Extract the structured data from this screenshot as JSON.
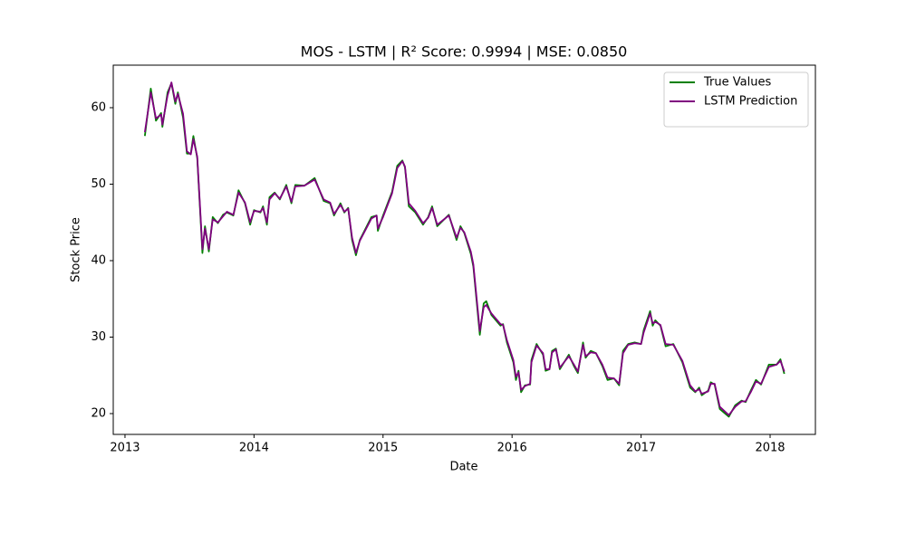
{
  "chart_data": {
    "type": "line",
    "title": "MOS - LSTM | R² Score: 0.9994 | MSE: 0.0850",
    "x_label": "Date",
    "y_label": "Stock Price",
    "x": [
      2013.154,
      2013.2,
      2013.24,
      2013.28,
      2013.29,
      2013.33,
      2013.36,
      2013.39,
      2013.41,
      2013.45,
      2013.48,
      2013.51,
      2013.53,
      2013.56,
      2013.6,
      2013.62,
      2013.65,
      2013.68,
      2013.72,
      2013.76,
      2013.79,
      2013.84,
      2013.88,
      2013.93,
      2013.97,
      2014.0,
      2014.05,
      2014.07,
      2014.1,
      2014.12,
      2014.16,
      2014.2,
      2014.25,
      2014.29,
      2014.32,
      2014.39,
      2014.47,
      2014.54,
      2014.59,
      2014.62,
      2014.67,
      2014.7,
      2014.73,
      2014.76,
      2014.79,
      2014.82,
      2014.91,
      2014.95,
      2014.96,
      2015.0,
      2015.07,
      2015.11,
      2015.15,
      2015.17,
      2015.2,
      2015.25,
      2015.31,
      2015.35,
      2015.38,
      2015.42,
      2015.51,
      2015.57,
      2015.6,
      2015.63,
      2015.68,
      2015.7,
      2015.75,
      2015.78,
      2015.8,
      2015.84,
      2015.91,
      2015.93,
      2015.96,
      2016.01,
      2016.03,
      2016.05,
      2016.07,
      2016.1,
      2016.14,
      2016.15,
      2016.19,
      2016.24,
      2016.26,
      2016.29,
      2016.31,
      2016.34,
      2016.37,
      2016.44,
      2016.48,
      2016.51,
      2016.55,
      2016.57,
      2016.61,
      2016.65,
      2016.7,
      2016.74,
      2016.79,
      2016.83,
      2016.86,
      2016.9,
      2016.95,
      2017.0,
      2017.02,
      2017.07,
      2017.09,
      2017.11,
      2017.15,
      2017.19,
      2017.25,
      2017.32,
      2017.38,
      2017.42,
      2017.45,
      2017.47,
      2017.52,
      2017.54,
      2017.57,
      2017.61,
      2017.68,
      2017.73,
      2017.78,
      2017.81,
      2017.85,
      2017.89,
      2017.93,
      2017.99,
      2018.05,
      2018.08,
      2018.11
    ],
    "series": [
      {
        "name": "True Values",
        "color": "#008000",
        "values": [
          56.3,
          62.5,
          58.3,
          59.3,
          57.5,
          62.0,
          63.2,
          60.5,
          62.0,
          58.7,
          54.0,
          54.0,
          56.3,
          53.4,
          41.0,
          44.5,
          41.2,
          45.7,
          44.9,
          46.0,
          46.3,
          45.9,
          49.2,
          47.5,
          44.7,
          46.6,
          46.3,
          47.1,
          44.7,
          48.3,
          48.9,
          48.0,
          49.9,
          47.5,
          49.9,
          49.8,
          50.8,
          47.8,
          47.5,
          45.9,
          47.5,
          46.3,
          46.9,
          42.7,
          40.7,
          42.7,
          45.7,
          45.9,
          43.9,
          45.9,
          49.0,
          52.4,
          53.1,
          52.2,
          47.1,
          46.3,
          44.7,
          45.7,
          47.1,
          44.5,
          46.0,
          42.7,
          44.5,
          43.6,
          40.9,
          39.2,
          30.3,
          34.4,
          34.7,
          32.9,
          31.5,
          31.7,
          29.3,
          26.7,
          24.4,
          25.6,
          22.8,
          23.7,
          23.8,
          27.0,
          29.1,
          27.7,
          25.6,
          25.8,
          28.2,
          28.5,
          25.8,
          27.7,
          26.2,
          25.3,
          29.3,
          27.3,
          28.2,
          27.9,
          26.2,
          24.4,
          24.6,
          23.7,
          28.2,
          29.1,
          29.3,
          29.1,
          30.9,
          33.4,
          31.5,
          32.2,
          31.5,
          28.8,
          29.1,
          26.7,
          23.4,
          22.8,
          23.4,
          22.4,
          23.0,
          24.1,
          23.8,
          20.6,
          19.6,
          21.1,
          21.7,
          21.5,
          23.0,
          24.4,
          23.8,
          26.4,
          26.4,
          27.1,
          25.2
        ]
      },
      {
        "name": "LSTM Prediction",
        "color": "#800080",
        "values": [
          56.8,
          62.0,
          58.6,
          59.1,
          57.8,
          61.6,
          63.3,
          60.8,
          61.8,
          59.2,
          54.3,
          53.9,
          55.9,
          53.6,
          41.5,
          44.2,
          41.5,
          45.4,
          45.0,
          45.8,
          46.4,
          46.0,
          48.9,
          47.6,
          45.0,
          46.5,
          46.4,
          46.9,
          45.0,
          48.0,
          48.8,
          48.1,
          49.7,
          47.7,
          49.7,
          49.8,
          50.6,
          48.0,
          47.6,
          46.1,
          47.3,
          46.4,
          46.8,
          43.0,
          41.0,
          42.6,
          45.5,
          45.9,
          44.2,
          45.7,
          48.8,
          52.1,
          53.0,
          52.3,
          47.5,
          46.5,
          44.9,
          45.6,
          46.9,
          44.7,
          45.9,
          43.0,
          44.3,
          43.7,
          41.2,
          39.5,
          30.8,
          33.9,
          34.2,
          33.1,
          31.7,
          31.6,
          29.6,
          27.0,
          24.8,
          25.4,
          23.1,
          23.6,
          23.9,
          26.7,
          28.9,
          27.9,
          25.8,
          25.8,
          28.0,
          28.4,
          26.0,
          27.5,
          26.4,
          25.5,
          29.0,
          27.5,
          28.0,
          27.9,
          26.4,
          24.7,
          24.6,
          23.9,
          27.9,
          29.0,
          29.2,
          29.1,
          30.6,
          33.1,
          31.8,
          32.0,
          31.6,
          29.1,
          29.0,
          26.9,
          23.7,
          22.9,
          23.2,
          22.6,
          22.9,
          23.9,
          23.9,
          20.9,
          19.8,
          20.9,
          21.6,
          21.6,
          22.8,
          24.2,
          23.9,
          26.1,
          26.4,
          26.9,
          25.5
        ]
      }
    ],
    "xlim": [
      2012.909,
      2018.351
    ],
    "xticks": [
      2013,
      2014,
      2015,
      2016,
      2017,
      2018
    ],
    "ylim": [
      17.28,
      65.56
    ],
    "yticks": [
      20,
      30,
      40,
      50,
      60
    ],
    "legend": "upper-right",
    "grid": false
  }
}
